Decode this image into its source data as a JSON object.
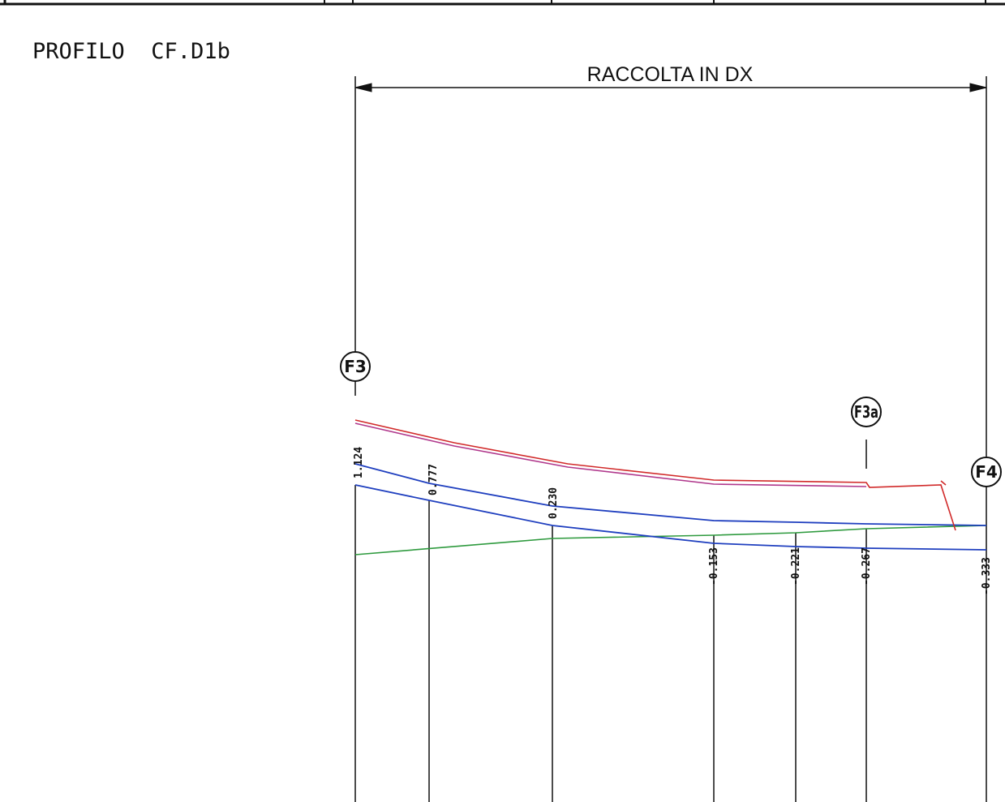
{
  "title": "PROFILO  CF.D1b",
  "dimension_label": "RACCOLTA IN DX",
  "markers": [
    {
      "id": "f3",
      "label": "F3"
    },
    {
      "id": "f3a",
      "label": "F3a"
    },
    {
      "id": "f4",
      "label": "F4"
    }
  ],
  "sections": [
    {
      "value": "1.124"
    },
    {
      "value": "0.777"
    },
    {
      "value": "0.230"
    },
    {
      "value": "-0.153"
    },
    {
      "value": "-0.221"
    },
    {
      "value": "-0.267"
    },
    {
      "value": "-0.333"
    }
  ],
  "colors": {
    "line": "#111111",
    "terrain_red": "#d12a2a",
    "terrain_pink": "#b0388c",
    "channel_blue": "#1f3fbf",
    "ground_green": "#2e9a3e"
  }
}
